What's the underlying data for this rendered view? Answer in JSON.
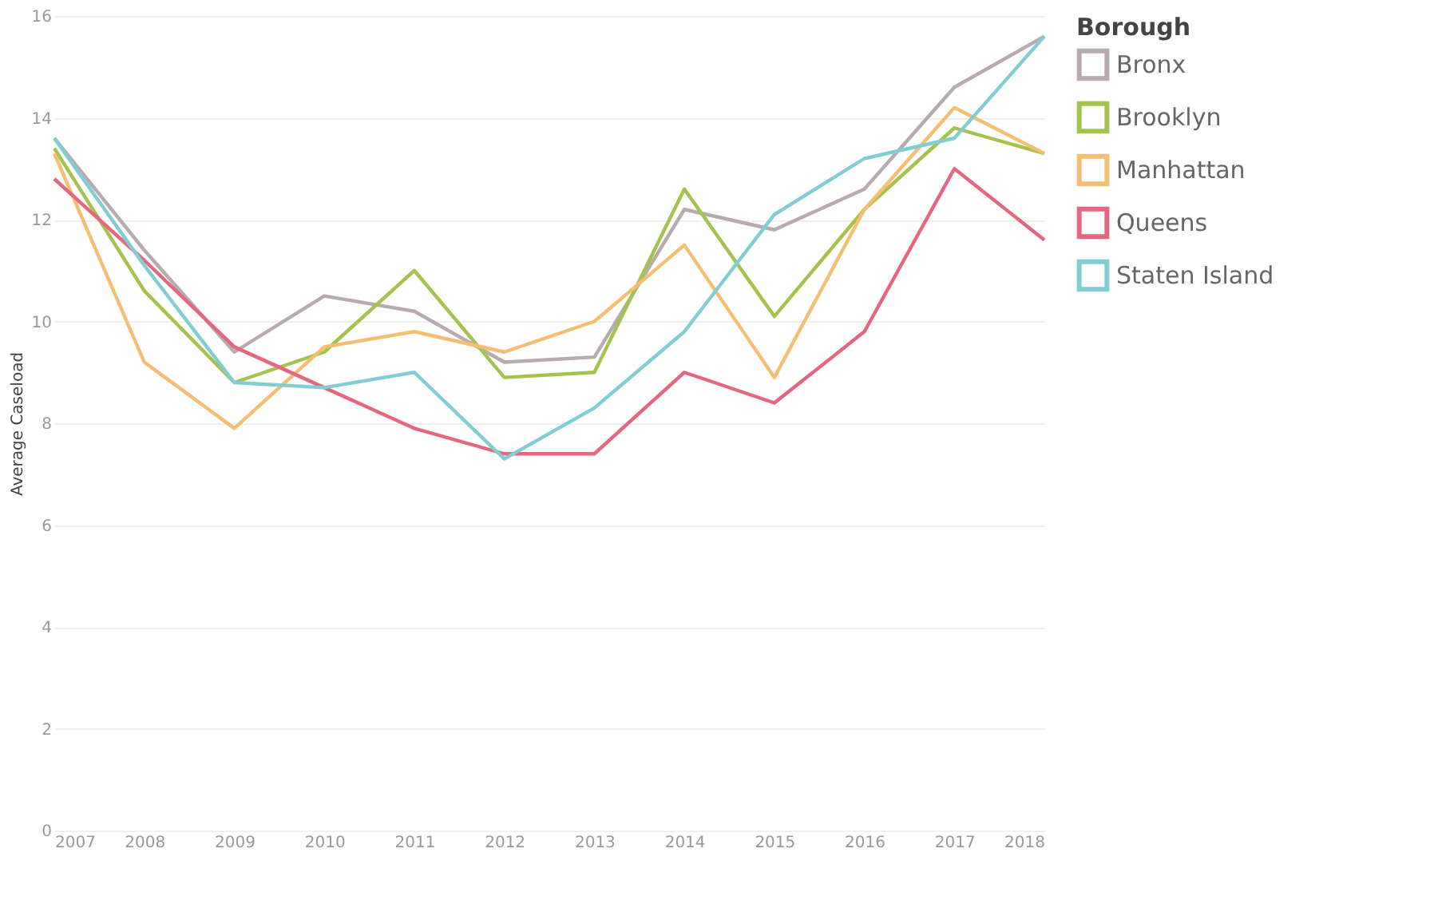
{
  "chart_data": {
    "type": "line",
    "ylabel": "Average Caseload",
    "legend_title": "Borough",
    "x": [
      2007,
      2008,
      2009,
      2010,
      2011,
      2012,
      2013,
      2014,
      2015,
      2016,
      2017,
      2018
    ],
    "series": [
      {
        "name": "Bronx",
        "color": "#b8abb0",
        "values": [
          13.6,
          11.4,
          9.4,
          10.5,
          10.2,
          9.2,
          9.3,
          12.2,
          11.8,
          12.6,
          14.6,
          15.6
        ]
      },
      {
        "name": "Brooklyn",
        "color": "#a5c24c",
        "values": [
          13.4,
          10.6,
          8.8,
          9.4,
          11.0,
          8.9,
          9.0,
          12.6,
          10.1,
          12.2,
          13.8,
          13.3
        ]
      },
      {
        "name": "Manhattan",
        "color": "#f4bf72",
        "values": [
          13.3,
          9.2,
          7.9,
          9.5,
          9.8,
          9.4,
          10.0,
          11.5,
          8.9,
          12.2,
          14.2,
          13.3
        ]
      },
      {
        "name": "Queens",
        "color": "#e5677f",
        "values": [
          12.8,
          11.2,
          9.5,
          8.7,
          7.9,
          7.4,
          7.4,
          9.0,
          8.4,
          9.8,
          13.0,
          11.6
        ]
      },
      {
        "name": "Staten Island",
        "color": "#82cdd3",
        "values": [
          13.6,
          11.1,
          8.8,
          8.7,
          9.0,
          7.3,
          8.3,
          9.8,
          12.1,
          13.2,
          13.6,
          15.6
        ]
      }
    ],
    "xlim": [
      2007,
      2018
    ],
    "xticks": [
      2007,
      2008,
      2009,
      2010,
      2011,
      2012,
      2013,
      2014,
      2015,
      2016,
      2017,
      2018
    ],
    "ylim": [
      0,
      16
    ],
    "yticks": [
      0,
      2,
      4,
      6,
      8,
      10,
      12,
      14,
      16
    ],
    "grid": "y",
    "legend": "right",
    "line_style": "solid",
    "marker": "none"
  }
}
